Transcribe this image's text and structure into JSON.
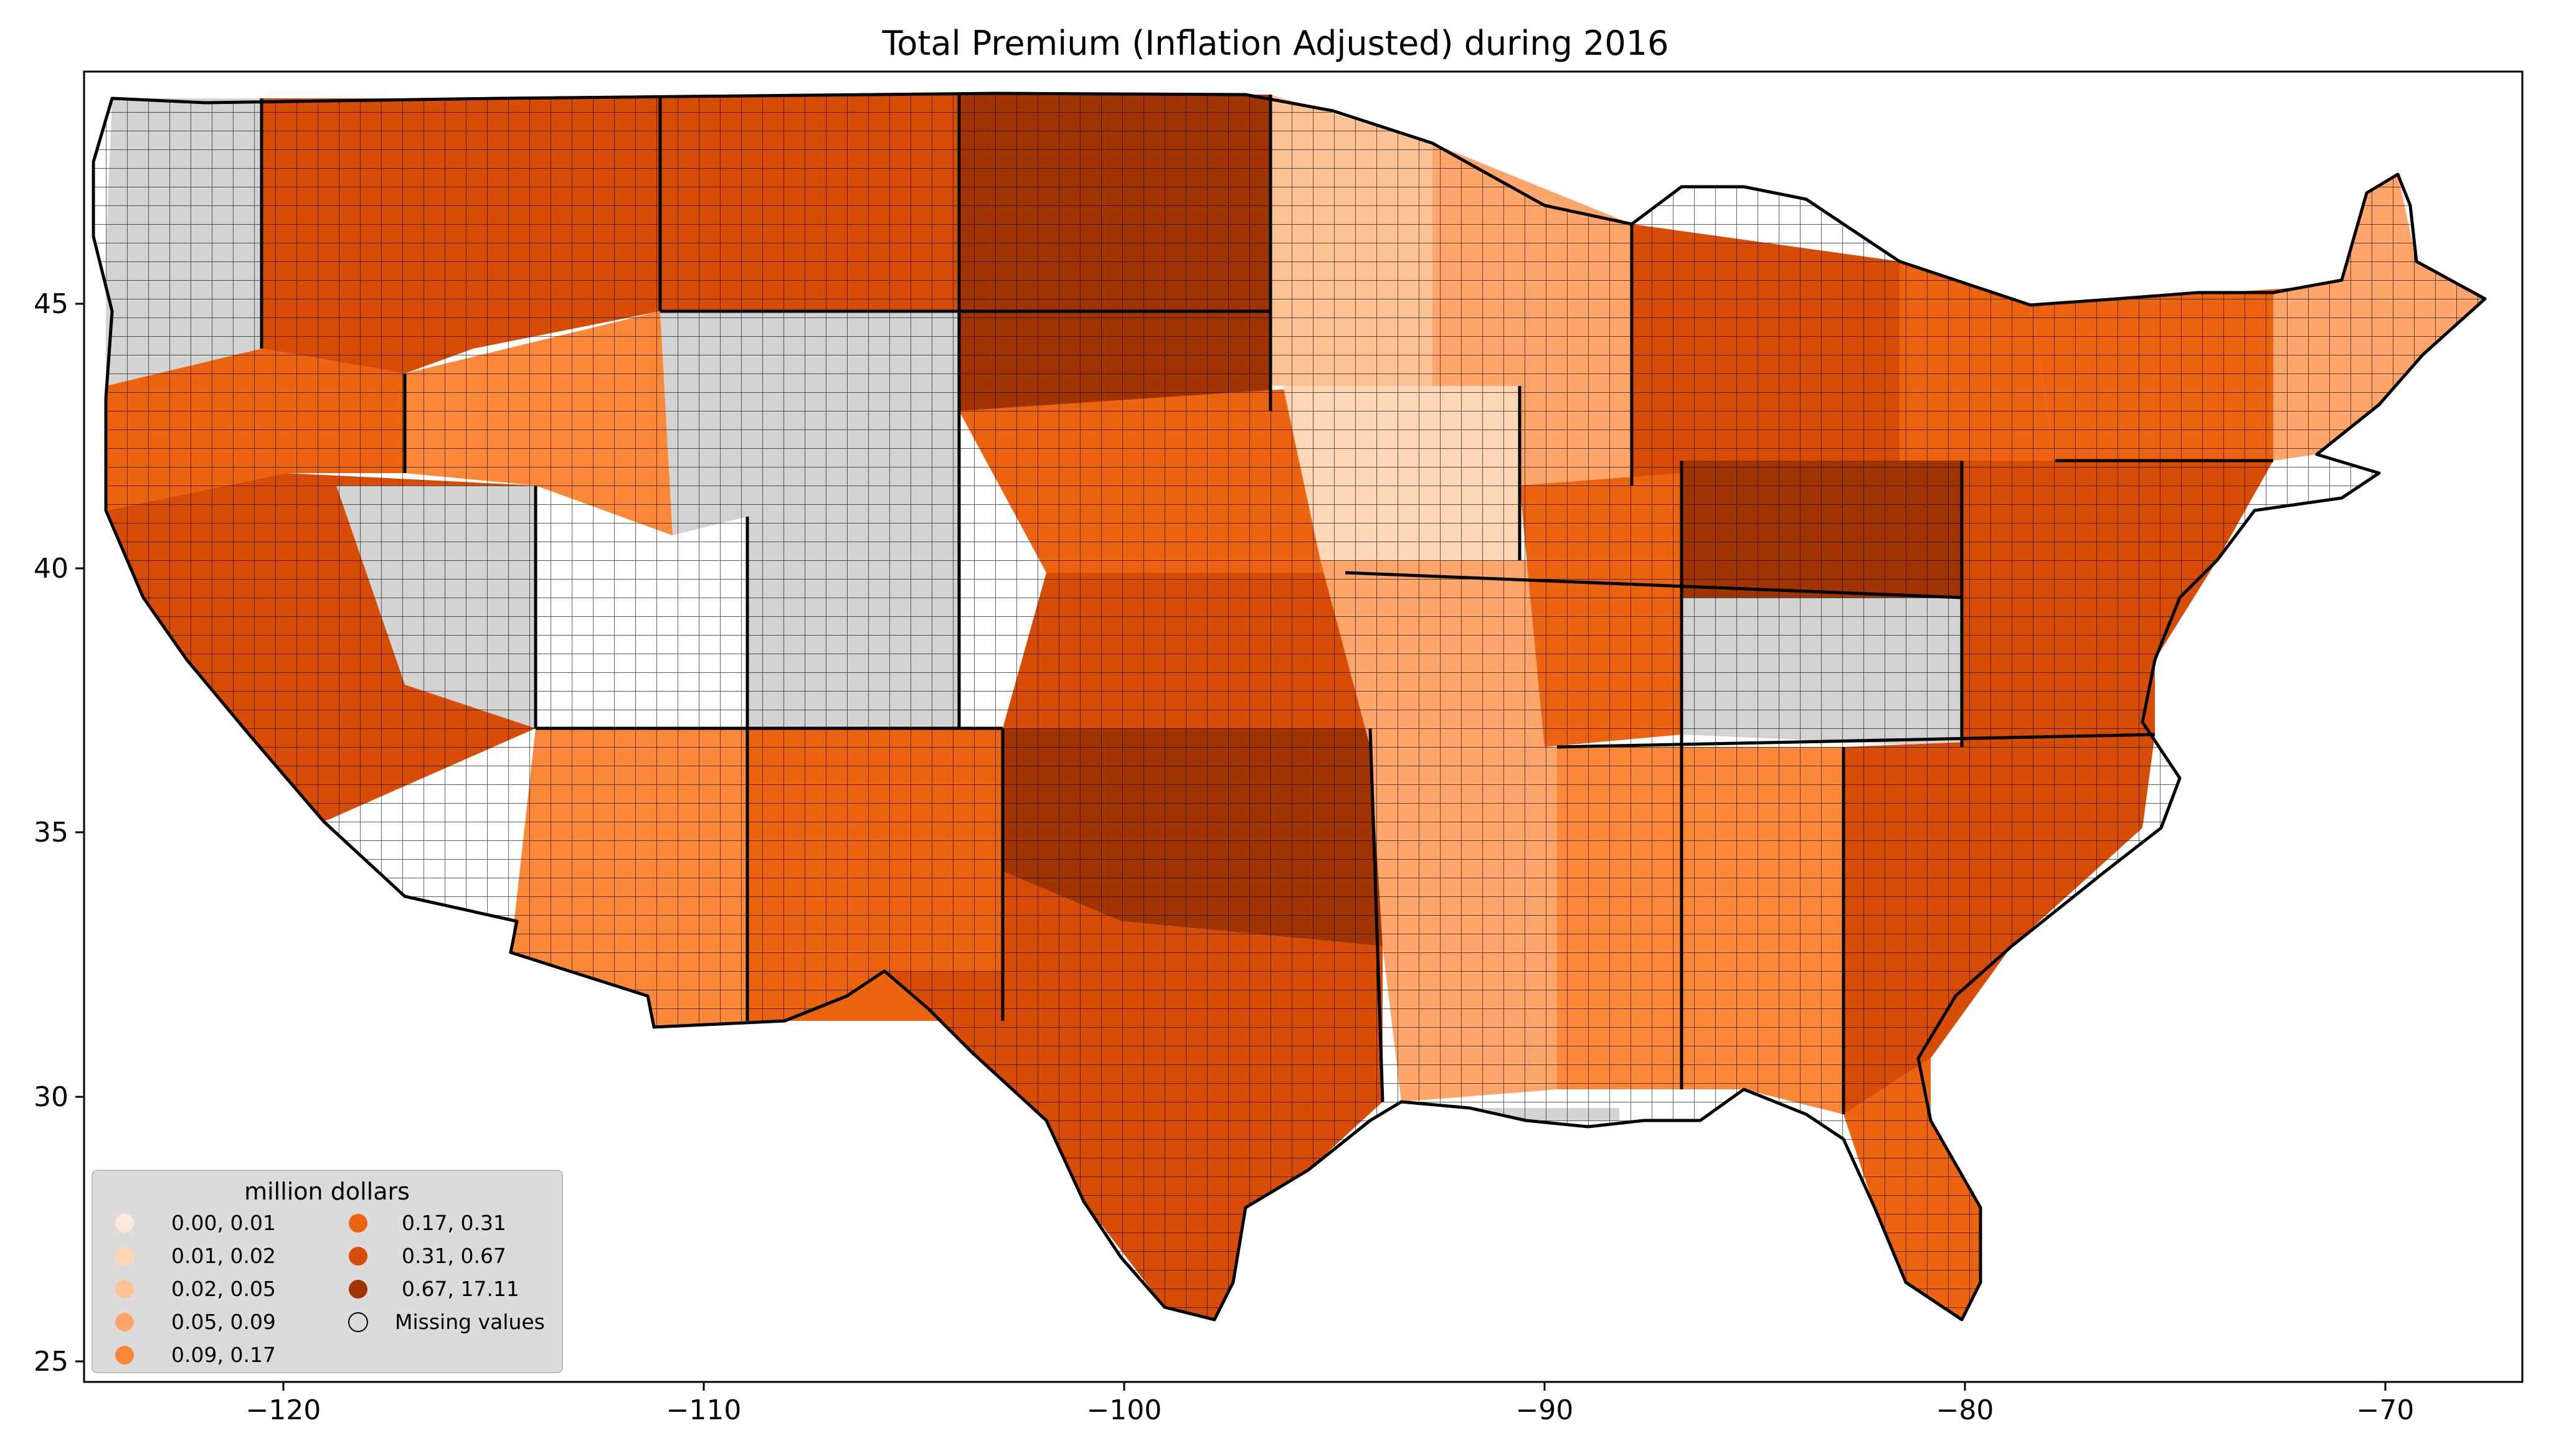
{
  "title": "Total  Premium  (Inflation Adjusted) during 2016",
  "axes": {
    "x_ticks": [
      "−120",
      "−110",
      "−100",
      "−90",
      "−80",
      "−70"
    ],
    "y_ticks": [
      "45",
      "40",
      "35",
      "30",
      "25"
    ]
  },
  "chart_data": {
    "type": "choropleth",
    "region": "contiguous United States counties",
    "xlim": [
      -124.9,
      -66.8
    ],
    "ylim": [
      24.5,
      49.7
    ],
    "x_tick_values": [
      -120,
      -110,
      -100,
      -90,
      -80,
      -70
    ],
    "y_tick_values": [
      45,
      40,
      35,
      30,
      25
    ],
    "legend": {
      "title": "million dollars",
      "placement": "lower-left",
      "entries": [
        {
          "label": "0.00,  0.01",
          "color": "#fde9dc"
        },
        {
          "label": "0.01,  0.02",
          "color": "#fdd6b6"
        },
        {
          "label": "0.02,  0.05",
          "color": "#fdc293"
        },
        {
          "label": "0.05,  0.09",
          "color": "#fda56b"
        },
        {
          "label": "0.09,  0.17",
          "color": "#fb8838"
        },
        {
          "label": "0.17,  0.31",
          "color": "#ec6310"
        },
        {
          "label": "0.31,  0.67",
          "color": "#d74d05"
        },
        {
          "label": "0.67, 17.11",
          "color": "#a13403"
        },
        {
          "label": "Missing values",
          "color": "#d3d3d3"
        }
      ]
    }
  },
  "colors": {
    "missing": "#d3d3d3",
    "border": "#000000",
    "legend_bg": "#d9d9d9"
  }
}
